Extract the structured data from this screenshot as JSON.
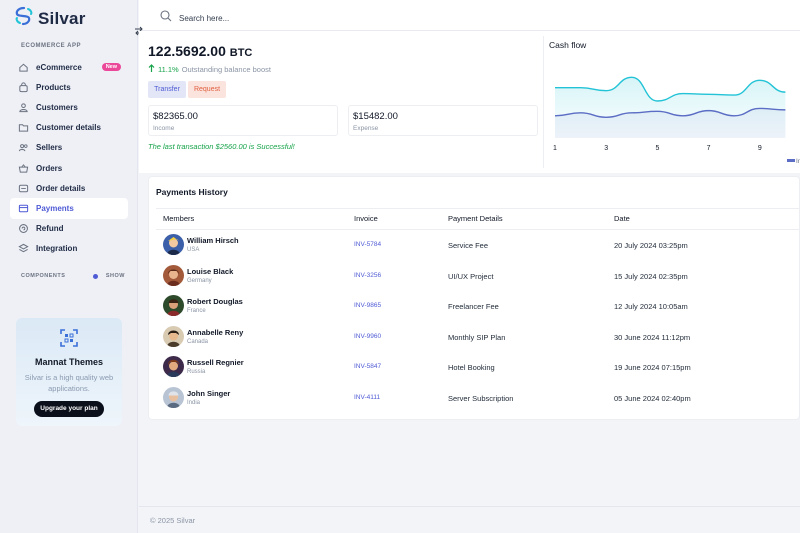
{
  "brand": {
    "name": "Silvar"
  },
  "sidebar": {
    "section_label": "ECOMMERCE APP",
    "items": [
      {
        "label": "eCommerce",
        "icon": "home-icon",
        "badge": "New"
      },
      {
        "label": "Products",
        "icon": "bag-icon"
      },
      {
        "label": "Customers",
        "icon": "users-icon"
      },
      {
        "label": "Customer details",
        "icon": "folder-icon"
      },
      {
        "label": "Sellers",
        "icon": "people-icon"
      },
      {
        "label": "Orders",
        "icon": "basket-icon"
      },
      {
        "label": "Order details",
        "icon": "menu-icon"
      },
      {
        "label": "Payments",
        "icon": "card-icon",
        "active": true
      },
      {
        "label": "Refund",
        "icon": "refund-icon"
      },
      {
        "label": "Integration",
        "icon": "stack-icon"
      }
    ],
    "components_label": "COMPONENTS",
    "components_toggle": "SHOW"
  },
  "promo": {
    "title": "Mannat Themes",
    "text": "Silvar is a high quality web applications.",
    "button": "Upgrade your plan"
  },
  "search": {
    "placeholder": "Search here..."
  },
  "balance": {
    "amount": "122.5692.00",
    "unit": "BTC",
    "growth_pct": "11.1%",
    "growth_text": "Outstanding balance boost",
    "transfer_label": "Transfer",
    "request_label": "Request",
    "income_value": "$82365.00",
    "income_label": "Income",
    "expense_value": "$15482.00",
    "expense_label": "Expense",
    "message": "The last transaction $2560.00 is Successful!"
  },
  "cashflow": {
    "title": "Cash flow",
    "x_ticks": [
      "1",
      "3",
      "5",
      "7",
      "9"
    ],
    "legend_partial": "In"
  },
  "chart_data": {
    "type": "area",
    "title": "Cash flow",
    "x": [
      1,
      2,
      3,
      4,
      5,
      6,
      7,
      8,
      9,
      10
    ],
    "series": [
      {
        "name": "",
        "color": "#22c3d6",
        "values": [
          68,
          68,
          64,
          82,
          50,
          60,
          59,
          58,
          78,
          62
        ]
      },
      {
        "name": "",
        "color": "#5b6dc4",
        "values": [
          30,
          34,
          28,
          34,
          36,
          30,
          37,
          30,
          40,
          38
        ]
      }
    ],
    "ylim": [
      0,
      100
    ],
    "grid": false,
    "legend": "bottom-right"
  },
  "payments": {
    "title": "Payments History",
    "columns": [
      "Members",
      "Invoice",
      "Payment Details",
      "Date"
    ],
    "rows": [
      {
        "name": "William Hirsch",
        "country": "USA",
        "invoice": "INV-5784",
        "detail": "Service Fee",
        "date": "20 July 2024 03:25pm"
      },
      {
        "name": "Louise Black",
        "country": "Germany",
        "invoice": "INV-3256",
        "detail": "UI/UX Project",
        "date": "15 July 2024 02:35pm"
      },
      {
        "name": "Robert Douglas",
        "country": "France",
        "invoice": "INV-9865",
        "detail": "Freelancer Fee",
        "date": "12 July 2024 10:05am"
      },
      {
        "name": "Annabelle Reny",
        "country": "Canada",
        "invoice": "INV-9960",
        "detail": "Monthly SIP Plan",
        "date": "30 June 2024 11:12pm"
      },
      {
        "name": "Russell Regnier",
        "country": "Russia",
        "invoice": "INV-5847",
        "detail": "Hotel Booking",
        "date": "19 June 2024 07:15pm"
      },
      {
        "name": "John Singer",
        "country": "India",
        "invoice": "INV-4111",
        "detail": "Server Subscription",
        "date": "05 June 2024 02:40pm"
      }
    ]
  },
  "footer": {
    "text": "© 2025 Silvar"
  }
}
